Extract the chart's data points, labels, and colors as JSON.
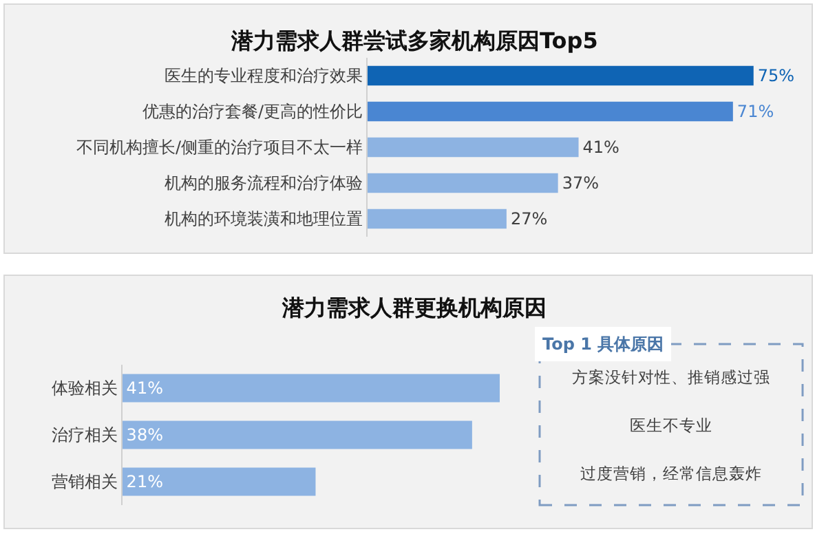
{
  "chart_data": [
    {
      "type": "bar",
      "orientation": "horizontal",
      "title": "潜力需求人群尝试多家机构原因Top5",
      "categories": [
        "医生的专业程度和治疗效果",
        "优惠的治疗套餐/更高的性价比",
        "不同机构擅长/侧重的治疗项目不太一样",
        "机构的服务流程和治疗体验",
        "机构的环境装潢和地理位置"
      ],
      "values": [
        75,
        71,
        41,
        37,
        27
      ],
      "colors": [
        "#0f64b4",
        "#4a86d2",
        "#8db3e2",
        "#8db3e2",
        "#8db3e2"
      ],
      "value_labels": [
        "75%",
        "71%",
        "41%",
        "37%",
        "27%"
      ],
      "tick_labels": "y"
    },
    {
      "type": "bar",
      "orientation": "horizontal",
      "title": "潜力需求人群更换机构原因",
      "categories": [
        "体验相关",
        "治疗相关",
        "营销相关"
      ],
      "values": [
        41,
        38,
        21
      ],
      "color": "#8db3e2",
      "value_labels": [
        "41%",
        "38%",
        "21%"
      ],
      "tick_labels": "y"
    },
    {
      "type": "other",
      "title": "Top 1 具体原因",
      "annotations": [
        "方案没针对性、推销感过强",
        "医生不专业",
        "过度营销，经常信息轰炸"
      ]
    }
  ]
}
